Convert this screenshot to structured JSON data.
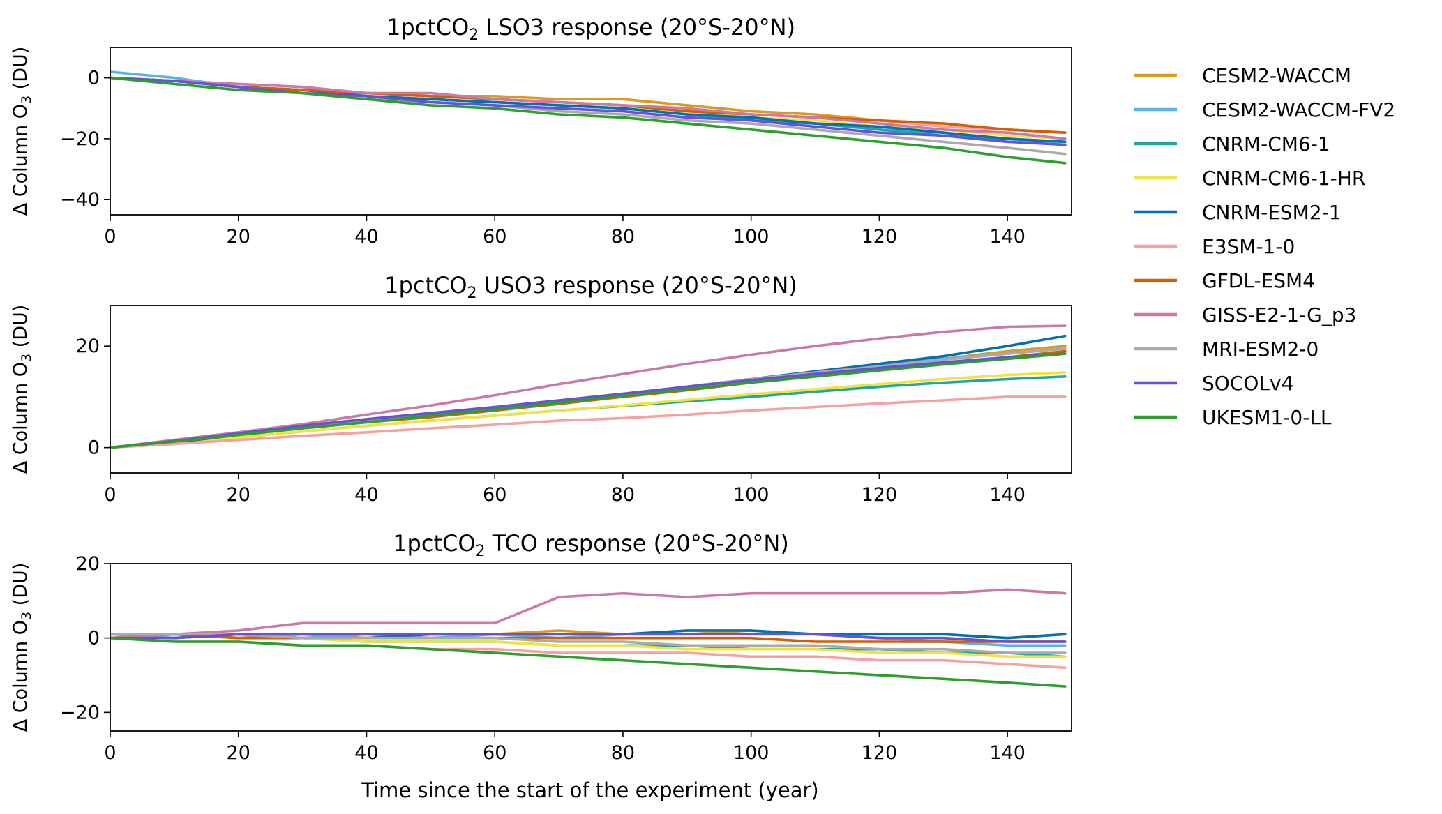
{
  "figure": {
    "xlabel": "Time since the start of the experiment (year)"
  },
  "legend": {
    "placement": "right, outside plots",
    "entries": [
      {
        "name": "CESM2-WACCM",
        "color": "#DE9A1F"
      },
      {
        "name": "CESM2-WACCM-FV2",
        "color": "#56B4E9"
      },
      {
        "name": "CNRM-CM6-1",
        "color": "#1FA8A1"
      },
      {
        "name": "CNRM-CM6-1-HR",
        "color": "#F0E442"
      },
      {
        "name": "CNRM-ESM2-1",
        "color": "#0072B2"
      },
      {
        "name": "E3SM-1-0",
        "color": "#F7A0A0"
      },
      {
        "name": "GFDL-ESM4",
        "color": "#D55E00"
      },
      {
        "name": "GISS-E2-1-G_p3",
        "color": "#CC79A7"
      },
      {
        "name": "MRI-ESM2-0",
        "color": "#AAAAAA"
      },
      {
        "name": "SOCOLv4",
        "color": "#6A4FD8"
      },
      {
        "name": "UKESM1-0-LL",
        "color": "#2CA02C"
      }
    ]
  },
  "chart_data": [
    {
      "type": "line",
      "title_prefix": "1pctCO",
      "title_sub": "2",
      "title_suffix": " LSO3 response (20°S-20°N)",
      "ylabel_prefix": "Δ Column O",
      "ylabel_sub": "3",
      "ylabel_suffix": " (DU)",
      "xlim": [
        0,
        150
      ],
      "ylim": [
        -45,
        10
      ],
      "xticks": [
        0,
        20,
        40,
        60,
        80,
        100,
        120,
        140
      ],
      "yticks": [
        -40,
        -20,
        0
      ],
      "grid": false,
      "x": [
        0,
        10,
        20,
        30,
        40,
        50,
        60,
        70,
        80,
        90,
        100,
        110,
        120,
        130,
        140,
        149
      ],
      "series": [
        {
          "name": "CESM2-WACCM",
          "values": [
            0,
            -1,
            -3,
            -4,
            -5,
            -6,
            -6,
            -7,
            -7,
            -9,
            -11,
            -12,
            -14,
            -16,
            -17,
            -18
          ]
        },
        {
          "name": "CESM2-WACCM-FV2",
          "values": [
            2,
            0,
            -3,
            -4,
            -6,
            -7,
            -8,
            -9,
            -10,
            -12,
            -13,
            -15,
            -17,
            -18,
            -20,
            -22
          ]
        },
        {
          "name": "CNRM-CM6-1",
          "values": [
            0,
            -1,
            -3,
            -4,
            -6,
            -7,
            -8,
            -9,
            -10,
            -12,
            -14,
            -15,
            -17,
            -19,
            -20,
            -21
          ]
        },
        {
          "name": "CNRM-CM6-1-HR",
          "values": [
            0,
            -1,
            -3,
            -4,
            -6,
            -7,
            -8,
            -9,
            -10,
            -11,
            -13,
            -14,
            -16,
            -17,
            -19,
            -20
          ]
        },
        {
          "name": "CNRM-ESM2-1",
          "values": [
            0,
            -1,
            -3,
            -4,
            -6,
            -7,
            -8,
            -9,
            -10,
            -12,
            -13,
            -15,
            -16,
            -18,
            -20,
            -21
          ]
        },
        {
          "name": "E3SM-1-0",
          "values": [
            0,
            -1,
            -2,
            -3,
            -5,
            -6,
            -7,
            -8,
            -9,
            -10,
            -12,
            -13,
            -14,
            -16,
            -17,
            -18
          ]
        },
        {
          "name": "GFDL-ESM4",
          "values": [
            0,
            -1,
            -3,
            -4,
            -5,
            -6,
            -7,
            -8,
            -9,
            -11,
            -12,
            -13,
            -14,
            -15,
            -17,
            -18
          ]
        },
        {
          "name": "GISS-E2-1-G_p3",
          "values": [
            0,
            -1,
            -2,
            -3,
            -5,
            -5,
            -7,
            -8,
            -9,
            -10,
            -12,
            -13,
            -15,
            -17,
            -18,
            -20
          ]
        },
        {
          "name": "MRI-ESM2-0",
          "values": [
            0,
            -1,
            -3,
            -5,
            -7,
            -8,
            -9,
            -11,
            -12,
            -14,
            -15,
            -17,
            -19,
            -21,
            -23,
            -25
          ]
        },
        {
          "name": "SOCOLv4",
          "values": [
            0,
            -1,
            -3,
            -5,
            -6,
            -8,
            -9,
            -10,
            -11,
            -13,
            -14,
            -16,
            -18,
            -19,
            -21,
            -22
          ]
        },
        {
          "name": "UKESM1-0-LL",
          "values": [
            0,
            -2,
            -4,
            -5,
            -7,
            -9,
            -10,
            -12,
            -13,
            -15,
            -17,
            -19,
            -21,
            -23,
            -26,
            -28
          ]
        }
      ]
    },
    {
      "type": "line",
      "title_prefix": "1pctCO",
      "title_sub": "2",
      "title_suffix": " USO3 response (20°S-20°N)",
      "ylabel_prefix": "Δ Column O",
      "ylabel_sub": "3",
      "ylabel_suffix": " (DU)",
      "xlim": [
        0,
        150
      ],
      "ylim": [
        -5,
        28
      ],
      "xticks": [
        0,
        20,
        40,
        60,
        80,
        100,
        120,
        140
      ],
      "yticks": [
        0,
        20
      ],
      "grid": false,
      "x": [
        0,
        10,
        20,
        30,
        40,
        50,
        60,
        70,
        80,
        90,
        100,
        110,
        120,
        130,
        140,
        149
      ],
      "series": [
        {
          "name": "CESM2-WACCM",
          "values": [
            0,
            1.2,
            2.5,
            4,
            5,
            6.3,
            7.5,
            9,
            10.5,
            12,
            13.5,
            15,
            16.3,
            17.5,
            19,
            20
          ]
        },
        {
          "name": "CESM2-WACCM-FV2",
          "values": [
            0,
            1.2,
            2.5,
            3.8,
            5,
            6.3,
            7.5,
            9,
            10.5,
            12,
            13.5,
            15,
            16.3,
            17.5,
            18.5,
            19.5
          ]
        },
        {
          "name": "CNRM-CM6-1",
          "values": [
            0,
            1,
            2,
            3.2,
            4.3,
            5.3,
            6.3,
            7.3,
            8.2,
            9.1,
            10,
            11,
            12,
            12.8,
            13.5,
            14
          ]
        },
        {
          "name": "CNRM-CM6-1-HR",
          "values": [
            0,
            1,
            2,
            3.2,
            4.3,
            5.3,
            6.3,
            7.3,
            8.3,
            9.4,
            10.5,
            11.5,
            12.5,
            13.5,
            14.3,
            14.8
          ]
        },
        {
          "name": "CNRM-ESM2-1",
          "values": [
            0,
            1,
            2.5,
            3.8,
            5,
            6.3,
            7.5,
            9,
            10.5,
            12,
            13.5,
            15,
            16.5,
            18,
            20,
            22
          ]
        },
        {
          "name": "E3SM-1-0",
          "values": [
            0,
            0.7,
            1.5,
            2.3,
            3,
            3.8,
            4.5,
            5.3,
            5.8,
            6.5,
            7.3,
            8,
            8.7,
            9.3,
            10,
            10
          ]
        },
        {
          "name": "GFDL-ESM4",
          "values": [
            0,
            1.2,
            2.5,
            3.8,
            5,
            6,
            7.3,
            8.6,
            10,
            11.3,
            12.8,
            14,
            15.3,
            16.5,
            17.8,
            19
          ]
        },
        {
          "name": "GISS-E2-1-G_p3",
          "values": [
            0,
            1.5,
            3,
            4.6,
            6.5,
            8.3,
            10.3,
            12.5,
            14.5,
            16.5,
            18.3,
            20,
            21.5,
            22.8,
            23.8,
            24
          ]
        },
        {
          "name": "MRI-ESM2-0",
          "values": [
            0,
            1.2,
            2.5,
            3.8,
            5.2,
            6.5,
            7.8,
            9.2,
            10.6,
            12,
            13.5,
            14.8,
            16,
            17.3,
            18.5,
            19.5
          ]
        },
        {
          "name": "SOCOLv4",
          "values": [
            0,
            1.3,
            2.8,
            4.3,
            5.6,
            6.8,
            8,
            9.3,
            10.6,
            12,
            13.3,
            14.5,
            15.7,
            16.8,
            17.8,
            18.5
          ]
        },
        {
          "name": "UKESM1-0-LL",
          "values": [
            0,
            1.2,
            2.5,
            3.8,
            5,
            6.3,
            7.5,
            8.8,
            10.2,
            11.5,
            12.8,
            14,
            15.2,
            16.4,
            17.5,
            18.5
          ]
        }
      ]
    },
    {
      "type": "line",
      "title_prefix": "1pctCO",
      "title_sub": "2",
      "title_suffix": " TCO response (20°S-20°N)",
      "ylabel_prefix": "Δ Column O",
      "ylabel_sub": "3",
      "ylabel_suffix": " (DU)",
      "xlim": [
        0,
        150
      ],
      "ylim": [
        -25,
        20
      ],
      "xticks": [
        0,
        20,
        40,
        60,
        80,
        100,
        120,
        140
      ],
      "yticks": [
        -20,
        0,
        20
      ],
      "grid": false,
      "x": [
        0,
        10,
        20,
        30,
        40,
        50,
        60,
        70,
        80,
        90,
        100,
        110,
        120,
        130,
        140,
        149
      ],
      "series": [
        {
          "name": "CESM2-WACCM",
          "values": [
            0,
            1,
            0,
            1,
            0,
            1,
            1,
            2,
            1,
            1,
            2,
            1,
            0,
            0,
            -1,
            -1
          ]
        },
        {
          "name": "CESM2-WACCM-FV2",
          "values": [
            1,
            0,
            1,
            0,
            1,
            0,
            1,
            0,
            1,
            2,
            2,
            1,
            0,
            -1,
            -2,
            -2
          ]
        },
        {
          "name": "CNRM-CM6-1",
          "values": [
            0,
            1,
            0,
            0,
            -1,
            -1,
            -1,
            -2,
            -2,
            -2,
            -3,
            -3,
            -3,
            -4,
            -4,
            -5
          ]
        },
        {
          "name": "CNRM-CM6-1-HR",
          "values": [
            0,
            1,
            0,
            0,
            -1,
            -1,
            -1,
            -2,
            -2,
            -3,
            -3,
            -3,
            -4,
            -4,
            -5,
            -5
          ]
        },
        {
          "name": "CNRM-ESM2-1",
          "values": [
            0,
            0,
            1,
            0,
            0,
            1,
            1,
            1,
            1,
            2,
            2,
            1,
            1,
            1,
            0,
            1
          ]
        },
        {
          "name": "E3SM-1-0",
          "values": [
            0,
            -1,
            -1,
            -2,
            -2,
            -3,
            -3,
            -4,
            -4,
            -4,
            -5,
            -5,
            -6,
            -6,
            -7,
            -8
          ]
        },
        {
          "name": "GFDL-ESM4",
          "values": [
            0,
            1,
            0,
            0,
            0,
            0,
            0,
            0,
            0,
            0,
            0,
            -1,
            -1,
            -1,
            -1,
            -1
          ]
        },
        {
          "name": "GISS-E2-1-G_p3",
          "values": [
            0,
            1,
            2,
            4,
            4,
            4,
            4,
            11,
            12,
            11,
            12,
            12,
            12,
            12,
            13,
            12
          ]
        },
        {
          "name": "MRI-ESM2-0",
          "values": [
            1,
            1,
            1,
            0,
            0,
            0,
            0,
            -1,
            -1,
            -2,
            -2,
            -2,
            -3,
            -3,
            -4,
            -4
          ]
        },
        {
          "name": "SOCOLv4",
          "values": [
            0,
            0,
            1,
            1,
            1,
            1,
            1,
            1,
            1,
            1,
            1,
            1,
            0,
            0,
            -1,
            -1
          ]
        },
        {
          "name": "UKESM1-0-LL",
          "values": [
            0,
            -1,
            -1,
            -2,
            -2,
            -3,
            -4,
            -5,
            -6,
            -7,
            -8,
            -9,
            -10,
            -11,
            -12,
            -13
          ]
        }
      ]
    }
  ]
}
